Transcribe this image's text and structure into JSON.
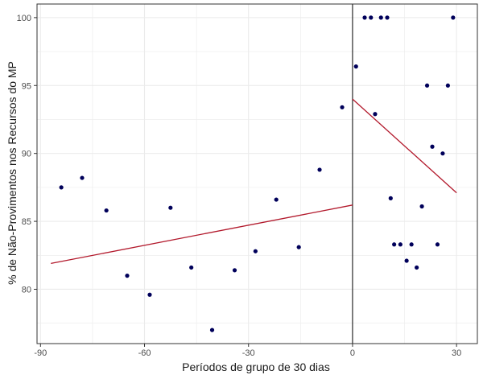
{
  "chart_data": {
    "type": "scatter",
    "title": "",
    "xlabel": "Períodos de grupo de 30 dias",
    "ylabel": "% de Não-Provimentos nos Recursos do MP",
    "xlim": [
      -91,
      36
    ],
    "ylim": [
      76,
      101
    ],
    "x_ticks": [
      -90,
      -60,
      -30,
      0,
      30
    ],
    "y_ticks": [
      80,
      85,
      90,
      95,
      100
    ],
    "grid": true,
    "cutoff_x": 0,
    "points": [
      {
        "x": -84,
        "y": 87.5
      },
      {
        "x": -78,
        "y": 88.2
      },
      {
        "x": -71,
        "y": 85.8
      },
      {
        "x": -65,
        "y": 81.0
      },
      {
        "x": -58.5,
        "y": 79.6
      },
      {
        "x": -52.5,
        "y": 86.0
      },
      {
        "x": -46.5,
        "y": 81.6
      },
      {
        "x": -40.5,
        "y": 77.0
      },
      {
        "x": -34,
        "y": 81.4
      },
      {
        "x": -28,
        "y": 82.8
      },
      {
        "x": -22,
        "y": 86.6
      },
      {
        "x": -15.5,
        "y": 83.1
      },
      {
        "x": -9.5,
        "y": 88.8
      },
      {
        "x": -3,
        "y": 93.4
      },
      {
        "x": 1,
        "y": 96.4
      },
      {
        "x": 3.5,
        "y": 100
      },
      {
        "x": 5.3,
        "y": 100
      },
      {
        "x": 6.5,
        "y": 92.9
      },
      {
        "x": 8.2,
        "y": 100
      },
      {
        "x": 10,
        "y": 100
      },
      {
        "x": 11,
        "y": 86.7
      },
      {
        "x": 12,
        "y": 83.3
      },
      {
        "x": 13.8,
        "y": 83.3
      },
      {
        "x": 15.6,
        "y": 82.1
      },
      {
        "x": 17,
        "y": 83.3
      },
      {
        "x": 18.5,
        "y": 81.6
      },
      {
        "x": 20,
        "y": 86.1
      },
      {
        "x": 21.5,
        "y": 95.0
      },
      {
        "x": 23,
        "y": 90.5
      },
      {
        "x": 24.5,
        "y": 83.3
      },
      {
        "x": 26,
        "y": 90.0
      },
      {
        "x": 27.5,
        "y": 95.0
      },
      {
        "x": 29,
        "y": 100
      }
    ],
    "fit_lines": [
      {
        "x": [
          -87,
          0
        ],
        "y": [
          81.9,
          86.2
        ]
      },
      {
        "x": [
          0,
          30
        ],
        "y": [
          94.0,
          87.1
        ]
      }
    ],
    "colors": {
      "points": "#00005a",
      "fit_line": "#b2182b",
      "cutoff_line": "#000000",
      "grid": "#ebebeb",
      "panel_border": "#333333"
    }
  }
}
